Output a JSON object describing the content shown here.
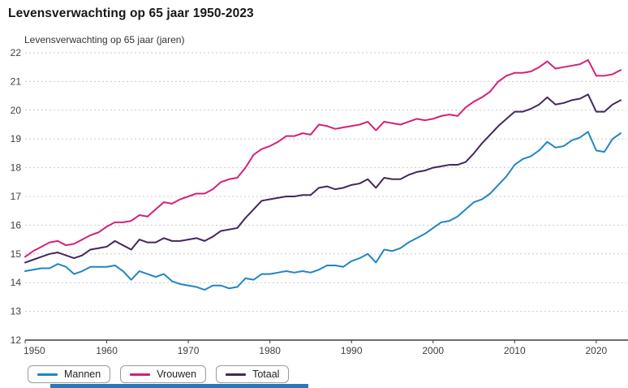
{
  "header": {
    "title": "Levensverwachting op 65 jaar 1950-2023"
  },
  "chart_data": {
    "type": "line",
    "title": "Levensverwachting op 65 jaar 1950-2023",
    "ylabel": "Levensverwachting op 65 jaar (jaren)",
    "xlabel": "",
    "x_start": 1950,
    "x_end": 2023,
    "ylim": [
      12,
      22
    ],
    "yticks": [
      12,
      13,
      14,
      15,
      16,
      17,
      18,
      19,
      20,
      21,
      22
    ],
    "xticks": [
      1950,
      1960,
      1970,
      1980,
      1990,
      2000,
      2010,
      2020
    ],
    "grid": "horizontal-dashed",
    "legend_position": "bottom-left",
    "style": {
      "grid_color": "#c9c9c9",
      "axis_color": "#3c3c3c"
    },
    "series": [
      {
        "name": "Mannen",
        "color": "#2185c5",
        "values": [
          14.4,
          14.45,
          14.5,
          14.5,
          14.65,
          14.55,
          14.3,
          14.4,
          14.55,
          14.55,
          14.55,
          14.6,
          14.4,
          14.1,
          14.4,
          14.3,
          14.2,
          14.3,
          14.05,
          13.95,
          13.9,
          13.85,
          13.75,
          13.9,
          13.9,
          13.8,
          13.85,
          14.15,
          14.1,
          14.3,
          14.3,
          14.35,
          14.4,
          14.35,
          14.4,
          14.35,
          14.45,
          14.6,
          14.6,
          14.55,
          14.75,
          14.85,
          15.0,
          14.7,
          15.15,
          15.1,
          15.2,
          15.4,
          15.55,
          15.7,
          15.9,
          16.1,
          16.15,
          16.3,
          16.55,
          16.8,
          16.9,
          17.1,
          17.4,
          17.7,
          18.1,
          18.3,
          18.4,
          18.6,
          18.9,
          18.7,
          18.75,
          18.95,
          19.05,
          19.25,
          18.6,
          18.55,
          19.0,
          19.2
        ]
      },
      {
        "name": "Vrouwen",
        "color": "#d62078",
        "values": [
          14.9,
          15.1,
          15.25,
          15.4,
          15.45,
          15.3,
          15.35,
          15.5,
          15.65,
          15.75,
          15.95,
          16.1,
          16.1,
          16.15,
          16.35,
          16.3,
          16.55,
          16.8,
          16.75,
          16.9,
          17.0,
          17.1,
          17.1,
          17.25,
          17.5,
          17.6,
          17.65,
          18.0,
          18.45,
          18.65,
          18.75,
          18.9,
          19.1,
          19.1,
          19.2,
          19.15,
          19.5,
          19.45,
          19.35,
          19.4,
          19.45,
          19.5,
          19.6,
          19.3,
          19.6,
          19.55,
          19.5,
          19.6,
          19.7,
          19.65,
          19.7,
          19.8,
          19.85,
          19.8,
          20.1,
          20.3,
          20.45,
          20.65,
          21.0,
          21.2,
          21.3,
          21.3,
          21.35,
          21.5,
          21.7,
          21.45,
          21.5,
          21.55,
          21.6,
          21.75,
          21.2,
          21.2,
          21.25,
          21.4
        ]
      },
      {
        "name": "Totaal",
        "color": "#44285c",
        "values": [
          14.7,
          14.8,
          14.9,
          15.0,
          15.05,
          14.95,
          14.85,
          14.95,
          15.15,
          15.2,
          15.25,
          15.45,
          15.3,
          15.15,
          15.5,
          15.4,
          15.4,
          15.55,
          15.45,
          15.45,
          15.5,
          15.55,
          15.45,
          15.6,
          15.8,
          15.85,
          15.9,
          16.25,
          16.55,
          16.85,
          16.9,
          16.95,
          17.0,
          17.0,
          17.05,
          17.05,
          17.3,
          17.35,
          17.25,
          17.3,
          17.4,
          17.45,
          17.6,
          17.3,
          17.65,
          17.6,
          17.6,
          17.75,
          17.85,
          17.9,
          18.0,
          18.05,
          18.1,
          18.1,
          18.2,
          18.5,
          18.85,
          19.15,
          19.45,
          19.7,
          19.95,
          19.95,
          20.05,
          20.2,
          20.45,
          20.2,
          20.25,
          20.35,
          20.4,
          20.55,
          19.95,
          19.95,
          20.2,
          20.35
        ]
      }
    ]
  }
}
